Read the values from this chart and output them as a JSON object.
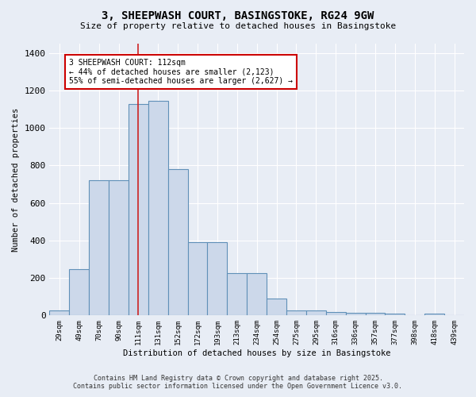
{
  "title_line1": "3, SHEEPWASH COURT, BASINGSTOKE, RG24 9GW",
  "title_line2": "Size of property relative to detached houses in Basingstoke",
  "xlabel": "Distribution of detached houses by size in Basingstoke",
  "ylabel": "Number of detached properties",
  "categories": [
    "29sqm",
    "49sqm",
    "70sqm",
    "90sqm",
    "111sqm",
    "131sqm",
    "152sqm",
    "172sqm",
    "193sqm",
    "213sqm",
    "234sqm",
    "254sqm",
    "275sqm",
    "295sqm",
    "316sqm",
    "336sqm",
    "357sqm",
    "377sqm",
    "398sqm",
    "418sqm",
    "439sqm"
  ],
  "values": [
    25,
    245,
    720,
    720,
    1130,
    1145,
    780,
    390,
    390,
    225,
    225,
    90,
    28,
    28,
    20,
    15,
    15,
    12,
    0,
    12,
    0
  ],
  "bar_color": "#ccd8ea",
  "bar_edge_color": "#6090b8",
  "vline_x_index": 4,
  "vline_color": "#cc2222",
  "annotation_text": "3 SHEEPWASH COURT: 112sqm\n← 44% of detached houses are smaller (2,123)\n55% of semi-detached houses are larger (2,627) →",
  "annotation_box_facecolor": "#ffffff",
  "annotation_box_edgecolor": "#cc0000",
  "background_color": "#e8edf5",
  "grid_color": "#ffffff",
  "footer_line1": "Contains HM Land Registry data © Crown copyright and database right 2025.",
  "footer_line2": "Contains public sector information licensed under the Open Government Licence v3.0.",
  "ylim": [
    0,
    1450
  ],
  "yticks": [
    0,
    200,
    400,
    600,
    800,
    1000,
    1200,
    1400
  ]
}
